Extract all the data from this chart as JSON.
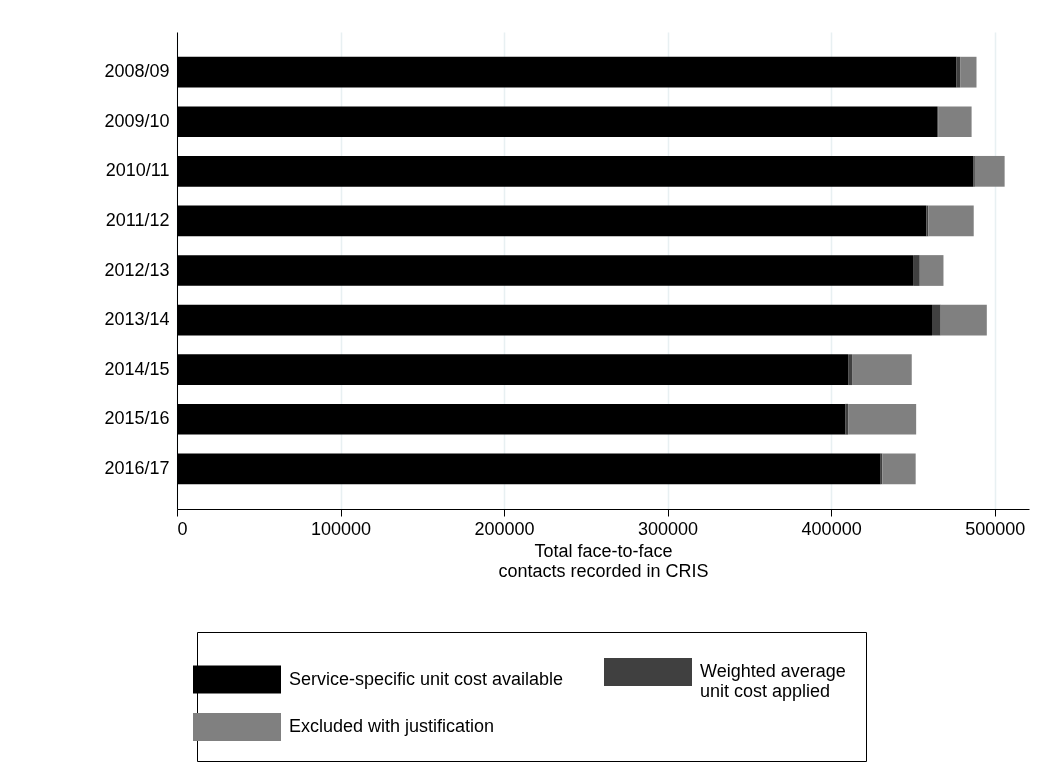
{
  "chart_data": {
    "type": "bar",
    "orientation": "horizontal",
    "stacked": true,
    "xlabel": "Total face-to-face\ncontacts recorded in CRIS",
    "categories": [
      "2008/09",
      "2009/10",
      "2010/11",
      "2011/12",
      "2012/13",
      "2013/14",
      "2014/15",
      "2015/16",
      "2016/17"
    ],
    "series": [
      {
        "name": "Service-specific unit cost available",
        "color": "#000000",
        "values": [
          476700,
          464800,
          486900,
          458200,
          450500,
          461700,
          410400,
          408600,
          430300
        ]
      },
      {
        "name": "Weighted average\nunit cost applied",
        "color": "#404040",
        "values": [
          2200,
          900,
          1000,
          1300,
          3700,
          5300,
          2400,
          1800,
          1000
        ]
      },
      {
        "name": "Excluded with justification",
        "color": "#808080",
        "values": [
          10000,
          20200,
          18200,
          27700,
          14500,
          28200,
          36500,
          41600,
          20400
        ]
      }
    ],
    "xlim": [
      0,
      521000
    ],
    "xticks": [
      0,
      100000,
      200000,
      300000,
      400000,
      500000
    ],
    "grid": "x",
    "legend": "bottom"
  }
}
